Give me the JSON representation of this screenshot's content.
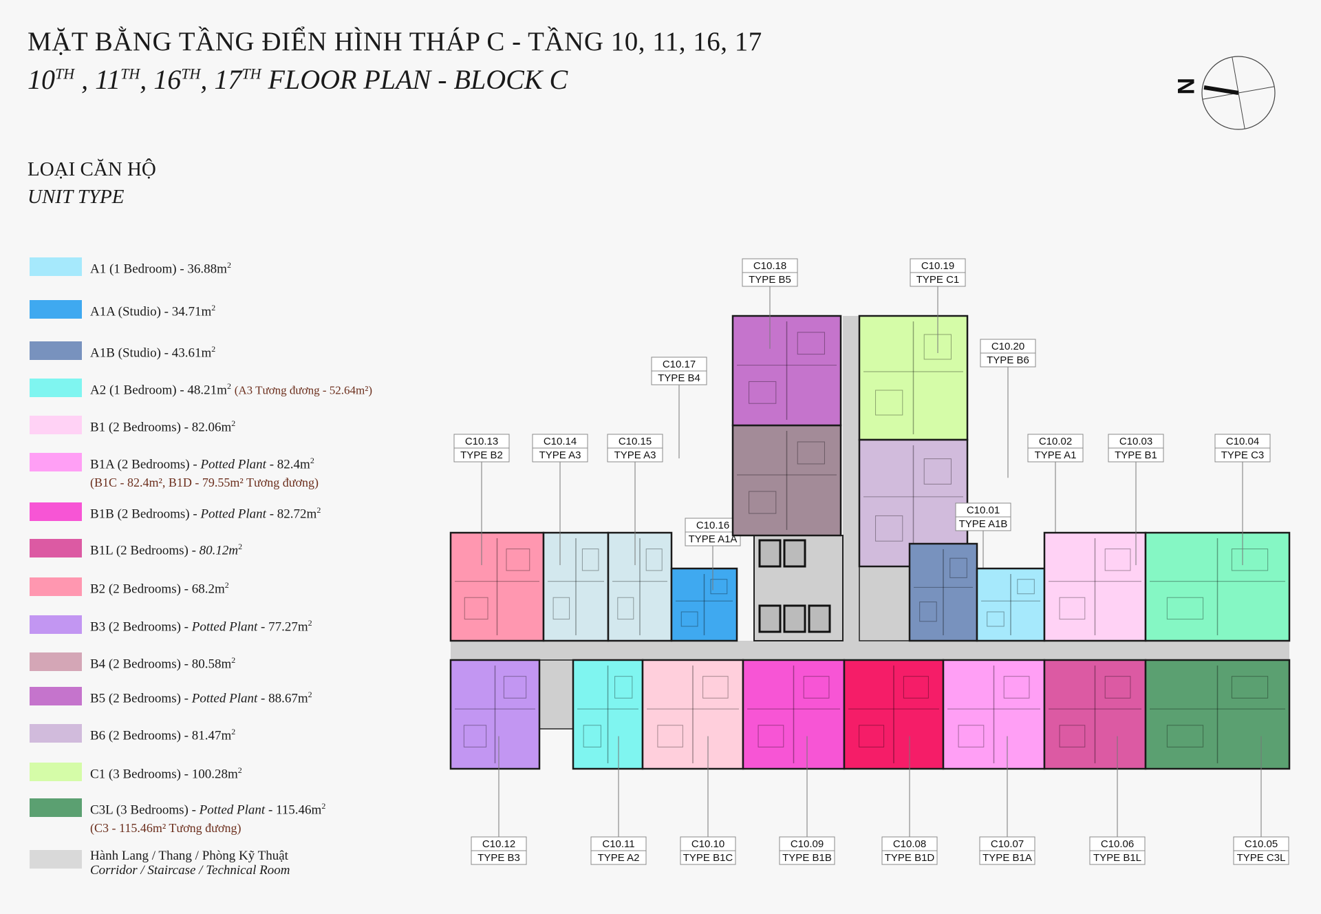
{
  "header": {
    "title": "MẶT BẰNG TẦNG ĐIỂN HÌNH THÁP C - TẦNG 10, 11, 16, 17",
    "subtitle_parts": [
      "10",
      "TH",
      " , 11",
      "TH",
      ", 16",
      "TH",
      ", 17",
      "TH",
      " FLOOR PLAN - BLOCK C"
    ]
  },
  "compass": {
    "label": "N",
    "icon": "north-arrow-compass-icon"
  },
  "legend": {
    "title_vi": "LOẠI CĂN HỘ",
    "title_en": "UNIT TYPE",
    "items": [
      {
        "color": "#a6e9fc",
        "text": "A1 (1 Bedroom) - 36.88m",
        "sup": "2"
      },
      {
        "color": "#3fa9f0",
        "text": "A1A (Studio) - 34.71m",
        "sup": "2"
      },
      {
        "color": "#7892be",
        "text": "A1B (Studio) - 43.61m",
        "sup": "2"
      },
      {
        "color": "#7ff5f0",
        "text": "A2 (1 Bedroom) - 48.21m",
        "sup": "2",
        "note": "(A3 Tương đương - 52.64m²)"
      },
      {
        "color": "#ffd2f5",
        "text": "B1 (2 Bedrooms) - 82.06m",
        "sup": "2"
      },
      {
        "color": "#ff9ff5",
        "text": "B1A (2 Bedrooms) - ",
        "italic": "Potted Plant",
        "text2": " - 82.4m",
        "sup": "2",
        "note_line": "(B1C - 82.4m², B1D - 79.55m² Tương đương)"
      },
      {
        "color": "#f755d5",
        "text": "B1B (2 Bedrooms) - ",
        "italic": "Potted Plant",
        "text2": " - 82.72m",
        "sup": "2"
      },
      {
        "color": "#dc5aa3",
        "text": "B1L (2 Bedrooms) - ",
        "italic": "80.12m",
        "sup": "2"
      },
      {
        "color": "#ff97b0",
        "text": "B2 (2 Bedrooms) - 68.2m",
        "sup": "2"
      },
      {
        "color": "#c296f2",
        "text": "B3 (2 Bedrooms) - ",
        "italic": "Potted Plant",
        "text2": " - 77.27m",
        "sup": "2"
      },
      {
        "color": "#d4a6b6",
        "text": "B4 (2 Bedrooms) - 80.58m",
        "sup": "2"
      },
      {
        "color": "#c574cc",
        "text": "B5 (2 Bedrooms) - ",
        "italic": "Potted Plant",
        "text2": " - 88.67m",
        "sup": "2"
      },
      {
        "color": "#d1bbdc",
        "text": "B6 (2 Bedrooms) - 81.47m",
        "sup": "2"
      },
      {
        "color": "#d5fca8",
        "text": "C1 (3 Bedrooms) - 100.28m",
        "sup": "2"
      },
      {
        "color": "#5ba071",
        "text": "C3L (3 Bedrooms) - ",
        "italic": "Potted Plant",
        "text2": " - 115.46m",
        "sup": "2",
        "note_line": "(C3 - 115.46m² Tương đương)"
      },
      {
        "color": "#d9d9d9",
        "text": "Hành Lang / Thang / Phòng Kỹ Thuật",
        "italic_line": "Corridor / Staircase / Technical Room"
      }
    ]
  },
  "plan": {
    "corridor_color": "#cfcfcf",
    "units": [
      {
        "id": "C10.13",
        "type": "TYPE B2",
        "color": "#ff97b0"
      },
      {
        "id": "C10.14",
        "type": "TYPE A3",
        "color": "#d3e8ee"
      },
      {
        "id": "C10.15",
        "type": "TYPE A3",
        "color": "#d3e8ee"
      },
      {
        "id": "C10.16",
        "type": "TYPE A1A",
        "color": "#3fa9f0"
      },
      {
        "id": "C10.17",
        "type": "TYPE B4",
        "color": "#a38b98"
      },
      {
        "id": "C10.18",
        "type": "TYPE B5",
        "color": "#c574cc"
      },
      {
        "id": "C10.19",
        "type": "TYPE C1",
        "color": "#d5fca8"
      },
      {
        "id": "C10.20",
        "type": "TYPE B6",
        "color": "#d1bbdc"
      },
      {
        "id": "C10.01",
        "type": "TYPE A1B",
        "color": "#7892be"
      },
      {
        "id": "C10.02",
        "type": "TYPE A1",
        "color": "#a6e9fc"
      },
      {
        "id": "C10.03",
        "type": "TYPE B1",
        "color": "#ffd2f5"
      },
      {
        "id": "C10.04",
        "type": "TYPE C3",
        "color": "#85f7c4"
      },
      {
        "id": "C10.12",
        "type": "TYPE B3",
        "color": "#c296f2"
      },
      {
        "id": "C10.11",
        "type": "TYPE A2",
        "color": "#7ff5f0"
      },
      {
        "id": "C10.10",
        "type": "TYPE B1C",
        "color": "#ffcfdc"
      },
      {
        "id": "C10.09",
        "type": "TYPE B1B",
        "color": "#f755d5"
      },
      {
        "id": "C10.08",
        "type": "TYPE B1D",
        "color": "#f51d68"
      },
      {
        "id": "C10.07",
        "type": "TYPE B1A",
        "color": "#ff9ff5"
      },
      {
        "id": "C10.06",
        "type": "TYPE B1L",
        "color": "#dc5aa3"
      },
      {
        "id": "C10.05",
        "type": "TYPE C3L",
        "color": "#5ba071"
      }
    ]
  }
}
